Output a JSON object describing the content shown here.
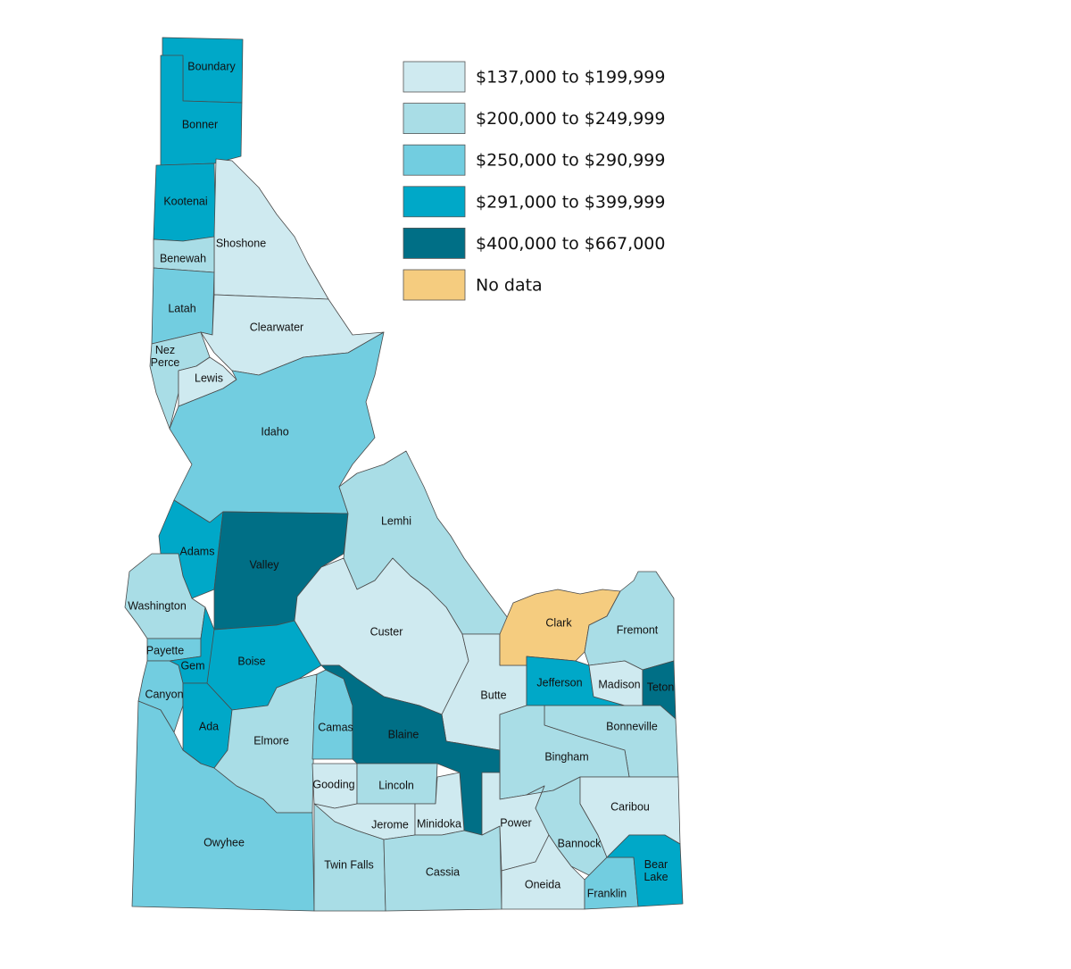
{
  "legend": [
    {
      "label": "$137,000 to $199,999",
      "color": "#cfeaf0"
    },
    {
      "label": "$200,000 to $249,999",
      "color": "#a9dde6"
    },
    {
      "label": "$250,000 to $290,999",
      "color": "#72cde0"
    },
    {
      "label": "$291,000 to $399,999",
      "color": "#00a8c8"
    },
    {
      "label": "$400,000 to $667,000",
      "color": "#006f86"
    },
    {
      "label": "No data",
      "color": "#f5cc7f"
    }
  ],
  "counties": [
    {
      "name": "Boundary",
      "color": "#00a8c8"
    },
    {
      "name": "Bonner",
      "color": "#00a8c8"
    },
    {
      "name": "Kootenai",
      "color": "#00a8c8"
    },
    {
      "name": "Shoshone",
      "color": "#cfeaf0"
    },
    {
      "name": "Benewah",
      "color": "#a9dde6"
    },
    {
      "name": "Latah",
      "color": "#72cde0"
    },
    {
      "name": "Clearwater",
      "color": "#cfeaf0"
    },
    {
      "name": "Nez Perce",
      "color": "#a9dde6"
    },
    {
      "name": "Lewis",
      "color": "#cfeaf0"
    },
    {
      "name": "Idaho",
      "color": "#72cde0"
    },
    {
      "name": "Adams",
      "color": "#00a8c8"
    },
    {
      "name": "Valley",
      "color": "#006f86"
    },
    {
      "name": "Washington",
      "color": "#a9dde6"
    },
    {
      "name": "Payette",
      "color": "#72cde0"
    },
    {
      "name": "Gem",
      "color": "#00a8c8"
    },
    {
      "name": "Boise",
      "color": "#00a8c8"
    },
    {
      "name": "Canyon",
      "color": "#72cde0"
    },
    {
      "name": "Ada",
      "color": "#00a8c8"
    },
    {
      "name": "Elmore",
      "color": "#a9dde6"
    },
    {
      "name": "Owyhee",
      "color": "#72cde0"
    },
    {
      "name": "Lemhi",
      "color": "#a9dde6"
    },
    {
      "name": "Custer",
      "color": "#cfeaf0"
    },
    {
      "name": "Butte",
      "color": "#cfeaf0"
    },
    {
      "name": "Clark",
      "color": "#f5cc7f"
    },
    {
      "name": "Fremont",
      "color": "#a9dde6"
    },
    {
      "name": "Jefferson",
      "color": "#00a8c8"
    },
    {
      "name": "Madison",
      "color": "#cfeaf0"
    },
    {
      "name": "Teton",
      "color": "#006f86"
    },
    {
      "name": "Bonneville",
      "color": "#a9dde6"
    },
    {
      "name": "Bingham",
      "color": "#a9dde6"
    },
    {
      "name": "Camas",
      "color": "#72cde0"
    },
    {
      "name": "Blaine",
      "color": "#006f86"
    },
    {
      "name": "Gooding",
      "color": "#cfeaf0"
    },
    {
      "name": "Lincoln",
      "color": "#a9dde6"
    },
    {
      "name": "Jerome",
      "color": "#cfeaf0"
    },
    {
      "name": "Minidoka",
      "color": "#cfeaf0"
    },
    {
      "name": "Twin Falls",
      "color": "#a9dde6"
    },
    {
      "name": "Cassia",
      "color": "#a9dde6"
    },
    {
      "name": "Power",
      "color": "#cfeaf0"
    },
    {
      "name": "Bannock",
      "color": "#a9dde6"
    },
    {
      "name": "Caribou",
      "color": "#cfeaf0"
    },
    {
      "name": "Oneida",
      "color": "#cfeaf0"
    },
    {
      "name": "Franklin",
      "color": "#72cde0"
    },
    {
      "name": "Bear Lake",
      "color": "#00a8c8"
    }
  ]
}
